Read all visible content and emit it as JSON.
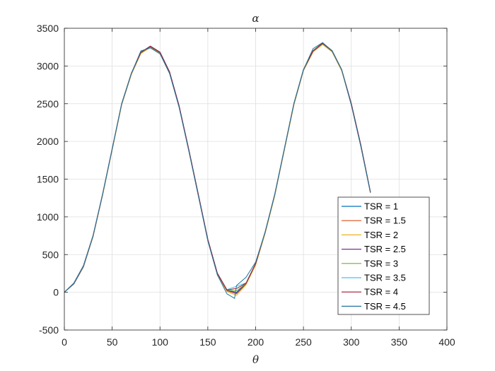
{
  "chart_data": {
    "type": "line",
    "title": "α",
    "xlabel": "θ",
    "ylabel": "",
    "xlim": [
      0,
      400
    ],
    "ylim": [
      -500,
      3500
    ],
    "xticks": [
      0,
      50,
      100,
      150,
      200,
      250,
      300,
      350,
      400
    ],
    "yticks": [
      -500,
      0,
      500,
      1000,
      1500,
      2000,
      2500,
      3000,
      3500
    ],
    "grid": true,
    "legend_position": "bottom-right",
    "series": [
      {
        "name": "TSR = 1",
        "color": "#0072BD",
        "x": [
          0,
          10,
          20,
          30,
          40,
          50,
          60,
          70,
          80,
          90,
          100,
          110,
          120,
          130,
          140,
          150,
          160,
          170,
          180,
          190,
          200,
          210,
          220,
          230,
          240,
          250,
          260,
          270,
          280,
          290,
          300,
          310,
          320
        ],
        "y": [
          0,
          120,
          350,
          750,
          1300,
          1900,
          2500,
          2900,
          3180,
          3260,
          3180,
          2920,
          2470,
          1900,
          1300,
          700,
          250,
          30,
          0,
          120,
          380,
          800,
          1300,
          1900,
          2500,
          2950,
          3200,
          3300,
          3200,
          2950,
          2500,
          1950,
          1330
        ]
      },
      {
        "name": "TSR = 1.5",
        "color": "#D95319",
        "x": [
          0,
          10,
          20,
          30,
          40,
          50,
          60,
          70,
          80,
          90,
          100,
          110,
          120,
          130,
          140,
          150,
          160,
          170,
          180,
          190,
          200,
          210,
          220,
          230,
          240,
          250,
          260,
          270,
          280,
          290,
          300,
          310,
          320
        ],
        "y": [
          0,
          115,
          340,
          740,
          1290,
          1890,
          2490,
          2890,
          3170,
          3250,
          3170,
          2910,
          2460,
          1890,
          1290,
          690,
          240,
          20,
          -20,
          110,
          370,
          790,
          1290,
          1890,
          2490,
          2940,
          3190,
          3290,
          3190,
          2940,
          2490,
          1940,
          1320
        ]
      },
      {
        "name": "TSR = 2",
        "color": "#EDB120",
        "x": [
          0,
          10,
          20,
          30,
          40,
          50,
          60,
          70,
          80,
          90,
          100,
          110,
          120,
          130,
          140,
          150,
          160,
          170,
          180,
          190,
          200,
          210,
          220,
          230,
          240,
          250,
          260,
          270,
          280,
          290,
          300,
          310,
          320
        ],
        "y": [
          0,
          110,
          335,
          735,
          1285,
          1885,
          2485,
          2885,
          3165,
          3245,
          3165,
          2905,
          2455,
          1885,
          1285,
          685,
          230,
          10,
          -40,
          100,
          360,
          780,
          1280,
          1880,
          2480,
          2935,
          3185,
          3285,
          3185,
          2935,
          2485,
          1935,
          1315
        ]
      },
      {
        "name": "TSR = 2.5",
        "color": "#7E2F8E",
        "x": [
          0,
          10,
          20,
          30,
          40,
          50,
          60,
          70,
          80,
          90,
          100,
          110,
          120,
          130,
          140,
          150,
          160,
          170,
          180,
          190,
          200,
          210,
          220,
          230,
          240,
          250,
          260,
          270,
          280,
          290,
          300,
          310,
          320
        ],
        "y": [
          0,
          112,
          338,
          742,
          1295,
          1895,
          2495,
          2895,
          3175,
          3255,
          3175,
          2915,
          2465,
          1895,
          1295,
          695,
          245,
          25,
          -10,
          115,
          375,
          795,
          1295,
          1895,
          2495,
          2945,
          3195,
          3295,
          3195,
          2945,
          2495,
          1945,
          1325
        ]
      },
      {
        "name": "TSR = 3",
        "color": "#77AC30",
        "x": [
          0,
          10,
          20,
          30,
          40,
          50,
          60,
          70,
          80,
          90,
          100,
          110,
          120,
          130,
          140,
          150,
          160,
          170,
          180,
          190,
          200,
          210,
          220,
          230,
          240,
          250,
          260,
          270,
          280,
          290,
          300,
          310,
          320
        ],
        "y": [
          0,
          118,
          345,
          748,
          1298,
          1898,
          2498,
          2898,
          3178,
          3258,
          3178,
          2918,
          2468,
          1898,
          1298,
          698,
          248,
          28,
          20,
          118,
          378,
          798,
          1298,
          1898,
          2498,
          2948,
          3198,
          3298,
          3198,
          2948,
          2498,
          1948,
          1328
        ]
      },
      {
        "name": "TSR = 3.5",
        "color": "#4DBEEE",
        "x": [
          0,
          10,
          20,
          30,
          40,
          50,
          60,
          70,
          80,
          90,
          100,
          110,
          120,
          130,
          140,
          150,
          160,
          170,
          180,
          190,
          200,
          210,
          220,
          230,
          240,
          250,
          260,
          270,
          280,
          290,
          300,
          310,
          320
        ],
        "y": [
          0,
          125,
          355,
          755,
          1305,
          1905,
          2505,
          2905,
          3185,
          3265,
          3185,
          2925,
          2475,
          1905,
          1305,
          705,
          255,
          35,
          80,
          125,
          385,
          805,
          1305,
          1905,
          2505,
          2955,
          3205,
          3305,
          3205,
          2955,
          2505,
          1955,
          1335
        ]
      },
      {
        "name": "TSR = 4",
        "color": "#A2142F",
        "x": [
          0,
          10,
          20,
          30,
          40,
          50,
          60,
          70,
          80,
          90,
          100,
          110,
          120,
          130,
          140,
          150,
          160,
          170,
          180,
          190,
          200,
          210,
          220,
          230,
          240,
          250,
          260,
          270,
          280,
          290,
          300,
          310,
          320
        ],
        "y": [
          0,
          122,
          352,
          752,
          1302,
          1902,
          2502,
          2902,
          3182,
          3262,
          3182,
          2922,
          2472,
          1902,
          1302,
          702,
          252,
          32,
          50,
          122,
          382,
          802,
          1302,
          1902,
          2502,
          2952,
          3202,
          3302,
          3202,
          2952,
          2502,
          1952,
          1332
        ]
      },
      {
        "name": "TSR = 4.5",
        "color": "#1F77A0",
        "x": [
          0,
          10,
          20,
          30,
          40,
          50,
          60,
          70,
          80,
          90,
          100,
          110,
          120,
          130,
          140,
          150,
          160,
          170,
          178,
          180,
          190,
          200,
          210,
          220,
          230,
          240,
          250,
          260,
          270,
          280,
          290,
          300,
          310,
          320
        ],
        "y": [
          0,
          120,
          350,
          750,
          1300,
          1900,
          2500,
          2900,
          3200,
          3240,
          3160,
          2900,
          2450,
          1880,
          1280,
          680,
          230,
          -20,
          -80,
          90,
          200,
          400,
          800,
          1300,
          1900,
          2500,
          2950,
          3230,
          3310,
          3200,
          2950,
          2480,
          1930,
          1320
        ]
      }
    ]
  }
}
